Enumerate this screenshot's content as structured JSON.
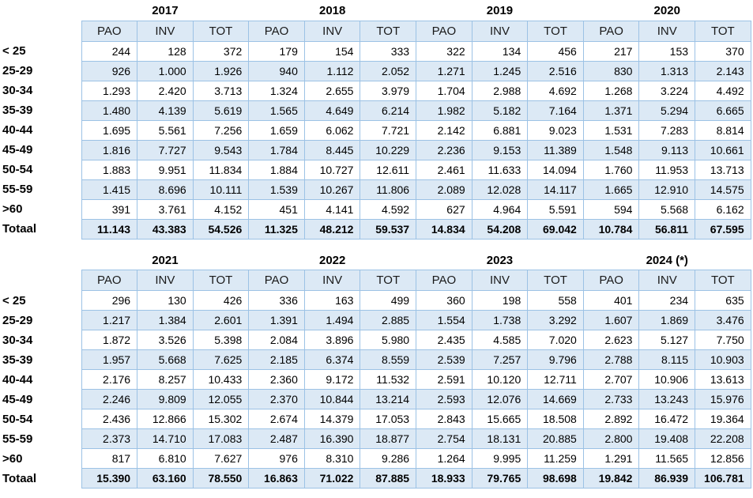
{
  "styles": {
    "band_fill": "#dce9f5",
    "header_fill": "#dce9f5",
    "border_color": "#9cc2e5",
    "text_color": "#000000"
  },
  "chart_data": [
    {
      "type": "table",
      "years": [
        "2017",
        "2018",
        "2019",
        "2020"
      ],
      "columns_per_year": [
        "PAO",
        "INV",
        "TOT"
      ],
      "rows": [
        {
          "label": "< 25",
          "values": [
            "244",
            "128",
            "372",
            "179",
            "154",
            "333",
            "322",
            "134",
            "456",
            "217",
            "153",
            "370"
          ]
        },
        {
          "label": "25-29",
          "values": [
            "926",
            "1.000",
            "1.926",
            "940",
            "1.112",
            "2.052",
            "1.271",
            "1.245",
            "2.516",
            "830",
            "1.313",
            "2.143"
          ]
        },
        {
          "label": "30-34",
          "values": [
            "1.293",
            "2.420",
            "3.713",
            "1.324",
            "2.655",
            "3.979",
            "1.704",
            "2.988",
            "4.692",
            "1.268",
            "3.224",
            "4.492"
          ]
        },
        {
          "label": "35-39",
          "values": [
            "1.480",
            "4.139",
            "5.619",
            "1.565",
            "4.649",
            "6.214",
            "1.982",
            "5.182",
            "7.164",
            "1.371",
            "5.294",
            "6.665"
          ]
        },
        {
          "label": "40-44",
          "values": [
            "1.695",
            "5.561",
            "7.256",
            "1.659",
            "6.062",
            "7.721",
            "2.142",
            "6.881",
            "9.023",
            "1.531",
            "7.283",
            "8.814"
          ]
        },
        {
          "label": "45-49",
          "values": [
            "1.816",
            "7.727",
            "9.543",
            "1.784",
            "8.445",
            "10.229",
            "2.236",
            "9.153",
            "11.389",
            "1.548",
            "9.113",
            "10.661"
          ]
        },
        {
          "label": "50-54",
          "values": [
            "1.883",
            "9.951",
            "11.834",
            "1.884",
            "10.727",
            "12.611",
            "2.461",
            "11.633",
            "14.094",
            "1.760",
            "11.953",
            "13.713"
          ]
        },
        {
          "label": "55-59",
          "values": [
            "1.415",
            "8.696",
            "10.111",
            "1.539",
            "10.267",
            "11.806",
            "2.089",
            "12.028",
            "14.117",
            "1.665",
            "12.910",
            "14.575"
          ]
        },
        {
          "label": ">60",
          "values": [
            "391",
            "3.761",
            "4.152",
            "451",
            "4.141",
            "4.592",
            "627",
            "4.964",
            "5.591",
            "594",
            "5.568",
            "6.162"
          ]
        },
        {
          "label": "Totaal",
          "values": [
            "11.143",
            "43.383",
            "54.526",
            "11.325",
            "48.212",
            "59.537",
            "14.834",
            "54.208",
            "69.042",
            "10.784",
            "56.811",
            "67.595"
          ]
        }
      ]
    },
    {
      "type": "table",
      "years": [
        "2021",
        "2022",
        "2023",
        "2024 (*)"
      ],
      "columns_per_year": [
        "PAO",
        "INV",
        "TOT"
      ],
      "rows": [
        {
          "label": "< 25",
          "values": [
            "296",
            "130",
            "426",
            "336",
            "163",
            "499",
            "360",
            "198",
            "558",
            "401",
            "234",
            "635"
          ]
        },
        {
          "label": "25-29",
          "values": [
            "1.217",
            "1.384",
            "2.601",
            "1.391",
            "1.494",
            "2.885",
            "1.554",
            "1.738",
            "3.292",
            "1.607",
            "1.869",
            "3.476"
          ]
        },
        {
          "label": "30-34",
          "values": [
            "1.872",
            "3.526",
            "5.398",
            "2.084",
            "3.896",
            "5.980",
            "2.435",
            "4.585",
            "7.020",
            "2.623",
            "5.127",
            "7.750"
          ]
        },
        {
          "label": "35-39",
          "values": [
            "1.957",
            "5.668",
            "7.625",
            "2.185",
            "6.374",
            "8.559",
            "2.539",
            "7.257",
            "9.796",
            "2.788",
            "8.115",
            "10.903"
          ]
        },
        {
          "label": "40-44",
          "values": [
            "2.176",
            "8.257",
            "10.433",
            "2.360",
            "9.172",
            "11.532",
            "2.591",
            "10.120",
            "12.711",
            "2.707",
            "10.906",
            "13.613"
          ]
        },
        {
          "label": "45-49",
          "values": [
            "2.246",
            "9.809",
            "12.055",
            "2.370",
            "10.844",
            "13.214",
            "2.593",
            "12.076",
            "14.669",
            "2.733",
            "13.243",
            "15.976"
          ]
        },
        {
          "label": "50-54",
          "values": [
            "2.436",
            "12.866",
            "15.302",
            "2.674",
            "14.379",
            "17.053",
            "2.843",
            "15.665",
            "18.508",
            "2.892",
            "16.472",
            "19.364"
          ]
        },
        {
          "label": "55-59",
          "values": [
            "2.373",
            "14.710",
            "17.083",
            "2.487",
            "16.390",
            "18.877",
            "2.754",
            "18.131",
            "20.885",
            "2.800",
            "19.408",
            "22.208"
          ]
        },
        {
          "label": ">60",
          "values": [
            "817",
            "6.810",
            "7.627",
            "976",
            "8.310",
            "9.286",
            "1.264",
            "9.995",
            "11.259",
            "1.291",
            "11.565",
            "12.856"
          ]
        },
        {
          "label": "Totaal",
          "values": [
            "15.390",
            "63.160",
            "78.550",
            "16.863",
            "71.022",
            "87.885",
            "18.933",
            "79.765",
            "98.698",
            "19.842",
            "86.939",
            "106.781"
          ]
        }
      ]
    }
  ]
}
